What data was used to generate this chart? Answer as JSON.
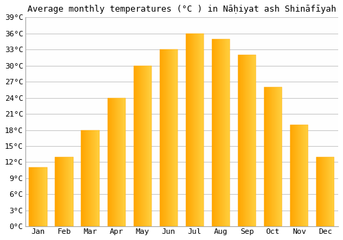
{
  "title": "Average monthly temperatures (°C ) in Nāḥiyat ash Shināfīyah",
  "months": [
    "Jan",
    "Feb",
    "Mar",
    "Apr",
    "May",
    "Jun",
    "Jul",
    "Aug",
    "Sep",
    "Oct",
    "Nov",
    "Dec"
  ],
  "values": [
    11,
    13,
    18,
    24,
    30,
    33,
    36,
    35,
    32,
    26,
    19,
    13
  ],
  "bar_color_left": "#FFA500",
  "bar_color_right": "#FFD040",
  "ylim": [
    0,
    39
  ],
  "yticks": [
    0,
    3,
    6,
    9,
    12,
    15,
    18,
    21,
    24,
    27,
    30,
    33,
    36,
    39
  ],
  "ytick_labels": [
    "0°C",
    "3°C",
    "6°C",
    "9°C",
    "12°C",
    "15°C",
    "18°C",
    "21°C",
    "24°C",
    "27°C",
    "30°C",
    "33°C",
    "36°C",
    "39°C"
  ],
  "background_color": "#ffffff",
  "plot_bg_color": "#fefefe",
  "grid_color": "#cccccc",
  "title_fontsize": 9,
  "tick_fontsize": 8,
  "bar_width": 0.7
}
